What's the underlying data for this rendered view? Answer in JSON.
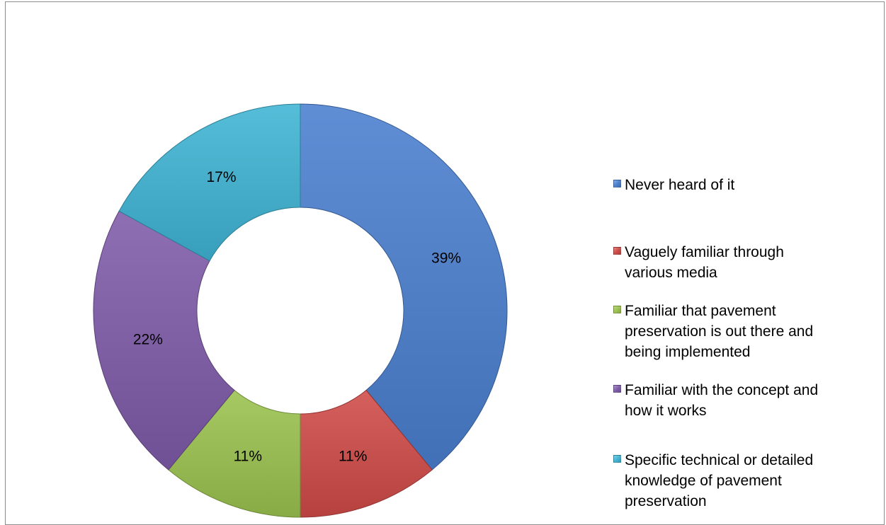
{
  "chart_data": {
    "type": "pie",
    "subtype": "donut",
    "categories": [
      "Never heard of it",
      "Vaguely familiar through various media",
      "Familiar that pavement preservation is out there and being implemented",
      "Familiar with the concept and how it works",
      "Specific technical or detailed knowledge of pavement preservation"
    ],
    "values": [
      39,
      11,
      11,
      22,
      17
    ],
    "data_labels": [
      "39%",
      "11%",
      "11%",
      "22%",
      "17%"
    ],
    "colors": [
      "#4a7fcf",
      "#cf4a47",
      "#9bc24e",
      "#7f5ba9",
      "#3fb4d4"
    ],
    "value_unit": "percent",
    "start": "top, clockwise",
    "legend_position": "right"
  },
  "legend": {
    "items": [
      {
        "label_lines": [
          "Never heard of it"
        ]
      },
      {
        "label_lines": [
          "Vaguely familiar through",
          "various media"
        ]
      },
      {
        "label_lines": [
          "Familiar that pavement",
          "preservation is out there and",
          "being implemented"
        ]
      },
      {
        "label_lines": [
          "Familiar with the concept and",
          "how it works"
        ]
      },
      {
        "label_lines": [
          "Specific technical or detailed",
          "knowledge of pavement",
          "preservation"
        ]
      }
    ]
  }
}
